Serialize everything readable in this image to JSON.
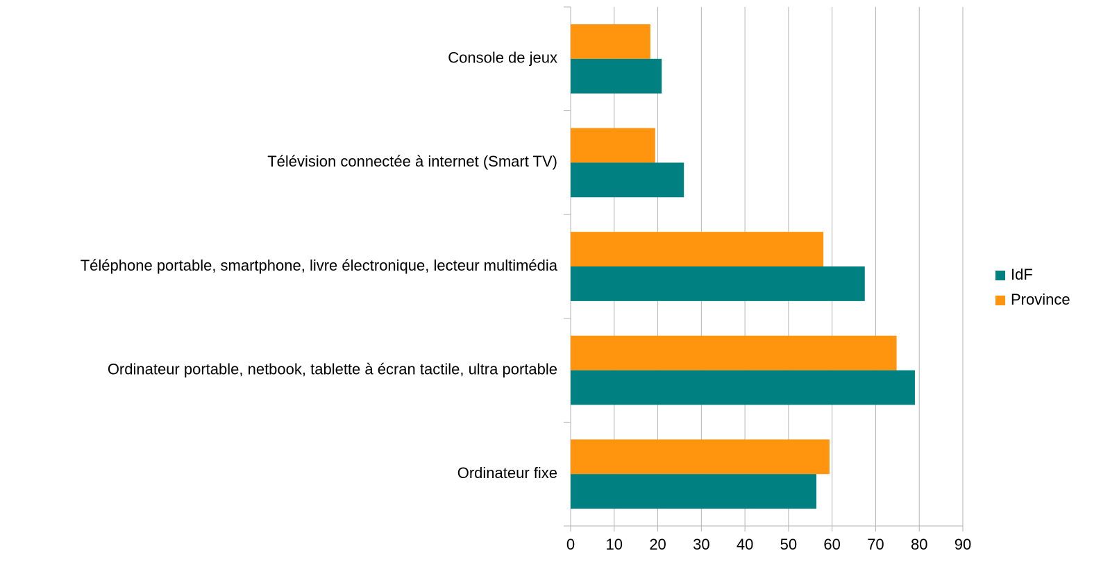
{
  "chart_data": {
    "type": "hbar",
    "categories": [
      "Console de jeux",
      "Télévision connectée à internet (Smart TV)",
      "Téléphone portable, smartphone, livre électronique, lecteur multimédia",
      "Ordinateur portable, netbook, tablette à écran tactile, ultra portable",
      "Ordinateur fixe"
    ],
    "series": [
      {
        "name": "IdF",
        "color": "#008080",
        "values": [
          20.9,
          26.0,
          67.5,
          79.0,
          56.4
        ]
      },
      {
        "name": "Province",
        "color": "#ff950e",
        "values": [
          18.3,
          19.4,
          58.0,
          74.8,
          59.4
        ]
      }
    ],
    "xlim": [
      0,
      90
    ],
    "xticks": [
      0,
      10,
      20,
      30,
      40,
      50,
      60,
      70,
      80,
      90
    ],
    "grid": true,
    "legend": "right"
  }
}
